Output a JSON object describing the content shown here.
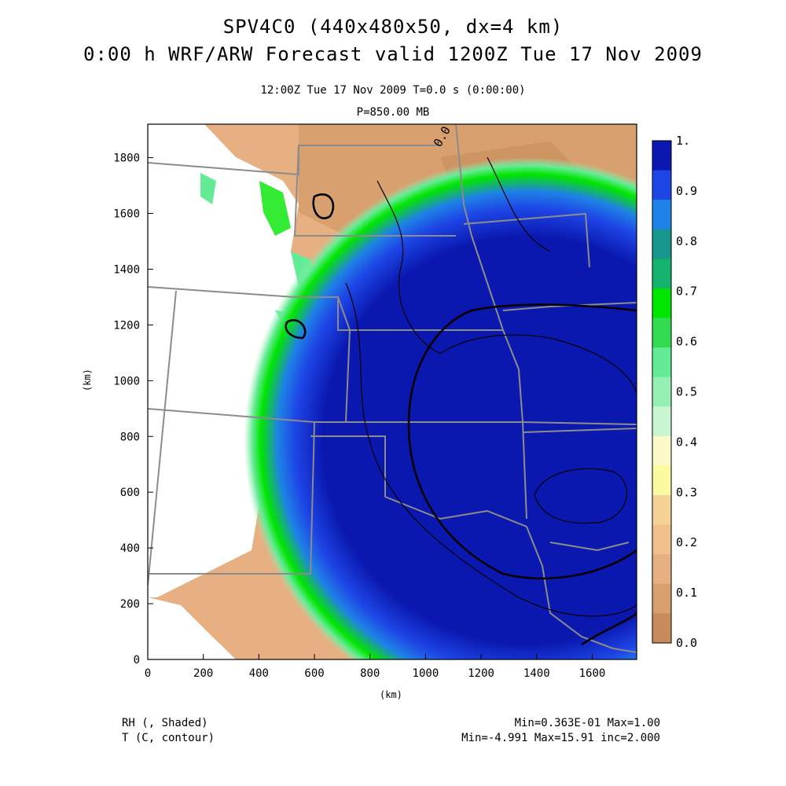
{
  "title": {
    "line1": "SPV4C0 (440x480x50, dx=4 km)",
    "line2": "0:00 h WRF/ARW Forecast valid 1200Z Tue 17 Nov 2009"
  },
  "subtitle": {
    "time": "12:00Z Tue 17 Nov 2009     T=0.0 s (0:00:00)",
    "level": "P=850.00 MB"
  },
  "axes": {
    "x_unit": "(km)",
    "y_unit": "(km)",
    "x_ticks": [
      "0",
      "200",
      "400",
      "600",
      "800",
      "1000",
      "1200",
      "1400",
      "1600"
    ],
    "y_ticks": [
      "0",
      "200",
      "400",
      "600",
      "800",
      "1000",
      "1200",
      "1400",
      "1600",
      "1800"
    ]
  },
  "colorbar": {
    "labels": [
      "1.",
      "0.9",
      "0.8",
      "0.7",
      "0.6",
      "0.5",
      "0.4",
      "0.3",
      "0.2",
      "0.1",
      "0.0"
    ],
    "colors": [
      "#0a18b0",
      "#1e46e6",
      "#1e82e6",
      "#16968c",
      "#14b46e",
      "#00e600",
      "#32dc50",
      "#64eb96",
      "#96f0b4",
      "#c8f5d2",
      "#fafac8",
      "#fafaa0",
      "#f5d296",
      "#f0c08c",
      "#e6b082",
      "#d7a06e",
      "#c88c5a"
    ]
  },
  "legend": {
    "field1": "RH (, Shaded)",
    "field2": "T (C, contour)",
    "stats1": "Min=0.363E-01 Max=1.00",
    "stats2": "Min=-4.991 Max=15.91 inc=2.000"
  },
  "contour_labels": {
    "top": "0.0"
  }
}
